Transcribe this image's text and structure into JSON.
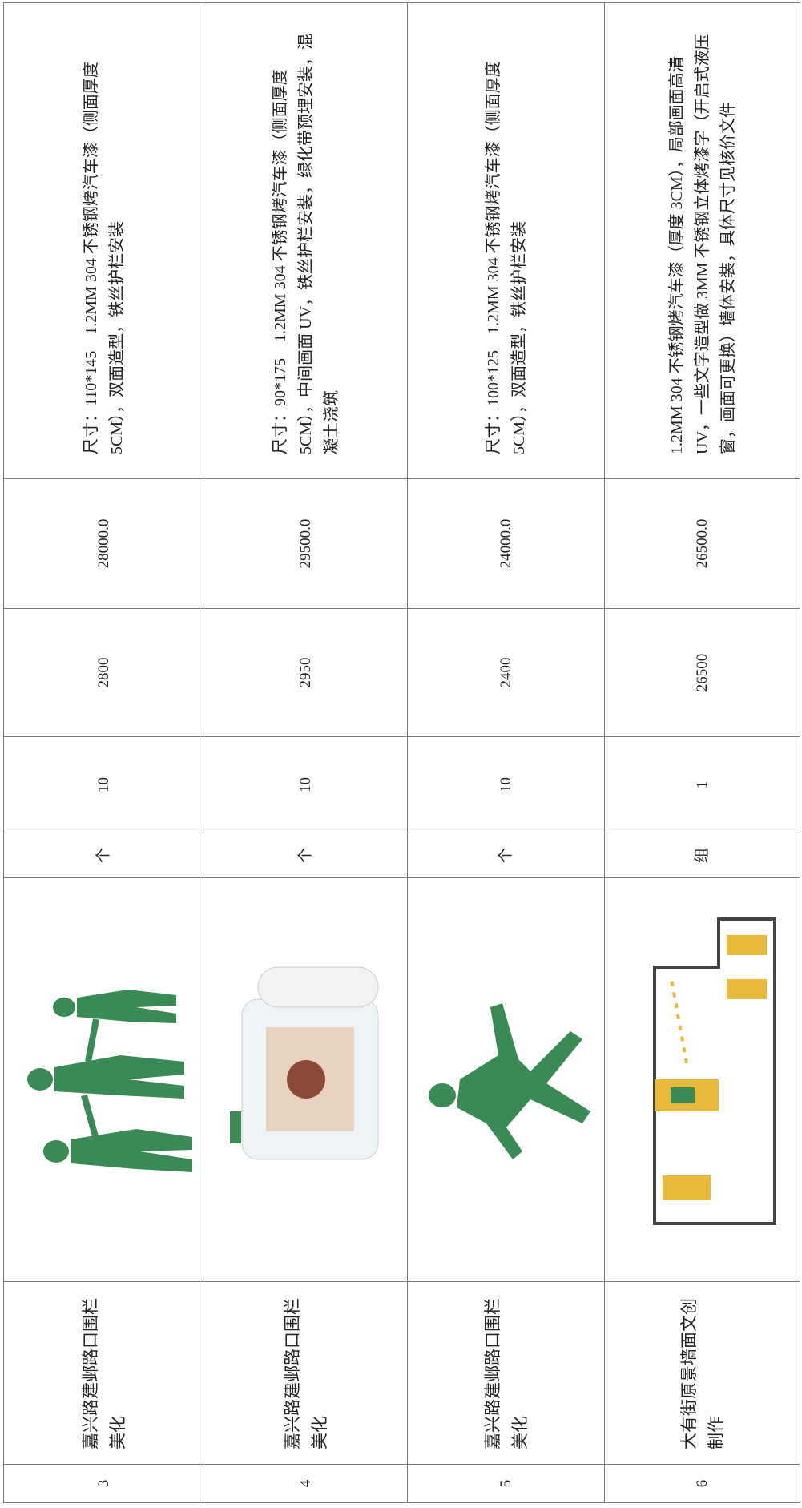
{
  "table": {
    "rows": [
      {
        "no": "3",
        "name": "嘉兴路建邺路口围栏美化",
        "unit": "个",
        "qty": "10",
        "price": "2800",
        "total": "28000.0",
        "desc": "尺寸：110*145　1.2MM 304 不锈钢烤汽车漆（侧面厚度 5CM），双面造型，铁丝护栏安装"
      },
      {
        "no": "4",
        "name": "嘉兴路建邺路口围栏美化",
        "unit": "个",
        "qty": "10",
        "price": "2950",
        "total": "29500.0",
        "desc": "尺寸：90*175　1.2MM 304 不锈钢烤汽车漆（侧面厚度 5CM），中间画面 UV，铁丝护栏安装，绿化带预埋安装，混凝土浇筑"
      },
      {
        "no": "5",
        "name": "嘉兴路建邺路口围栏美化",
        "unit": "个",
        "qty": "10",
        "price": "2400",
        "total": "24000.0",
        "desc": "尺寸：100*125　1.2MM 304 不锈钢烤汽车漆（侧面厚度 5CM），双面造型，铁丝护栏安装"
      },
      {
        "no": "6",
        "name": "大有街原景墙面文创制作",
        "unit": "组",
        "qty": "1",
        "price": "26500",
        "total": "26500.0",
        "desc": "1.2MM 304 不锈钢烤汽车漆（厚度 3CM），局部画面高清 UV，一些文字造型做 3MM 不锈钢立体烤漆字（开启式液压窗，画面可更换）墙体安装，具体尺寸见核价文件"
      }
    ]
  }
}
